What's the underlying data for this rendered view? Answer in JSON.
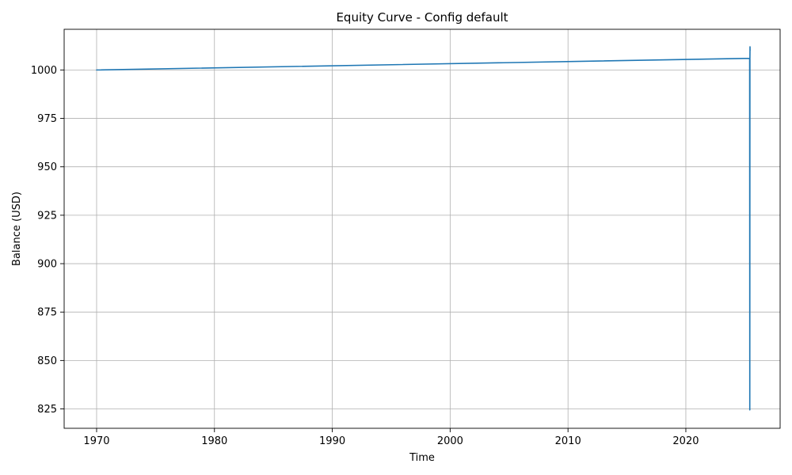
{
  "chart_data": {
    "type": "line",
    "title": "Equity Curve - Config default",
    "xlabel": "Time",
    "ylabel": "Balance (USD)",
    "x_axis": "date",
    "xlim": [
      "1967-04-01",
      "2028-01-01"
    ],
    "ylim": [
      815,
      1021
    ],
    "grid": true,
    "xticks": [
      {
        "value": "1970-01-01",
        "label": "1970"
      },
      {
        "value": "1980-01-01",
        "label": "1980"
      },
      {
        "value": "1990-01-01",
        "label": "1990"
      },
      {
        "value": "2000-01-01",
        "label": "2000"
      },
      {
        "value": "2010-01-01",
        "label": "2010"
      },
      {
        "value": "2020-01-01",
        "label": "2020"
      }
    ],
    "yticks": [
      825,
      850,
      875,
      900,
      925,
      950,
      975,
      1000
    ],
    "series": [
      {
        "color": "#1f77b4",
        "points": [
          {
            "x": "1970-01-01",
            "y": 1000
          },
          {
            "x": "2025-06-01",
            "y": 1006
          },
          {
            "x": "2025-06-05",
            "y": 824.5
          },
          {
            "x": "2025-06-09",
            "y": 1006
          },
          {
            "x": "2025-06-12",
            "y": 1012
          },
          {
            "x": "2025-06-14",
            "y": 1010
          }
        ]
      }
    ]
  }
}
